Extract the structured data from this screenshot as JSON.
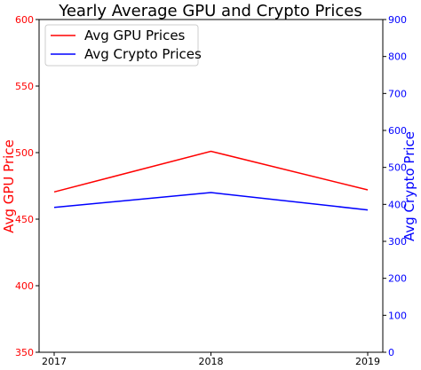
{
  "chart_data": {
    "type": "line",
    "title": "Yearly Average GPU and Crypto Prices",
    "xlabel": "",
    "x": [
      "2017",
      "2018",
      "2019"
    ],
    "legend_position": "top-left",
    "grid": false,
    "series": [
      {
        "name": "Avg GPU Prices",
        "axis": "left",
        "color": "#ff0000",
        "values": [
          470.5,
          501.0,
          472.0
        ]
      },
      {
        "name": "Avg Crypto Prices",
        "axis": "right",
        "color": "#0000ff",
        "values": [
          392,
          432,
          385
        ]
      }
    ],
    "y_left": {
      "label": "Avg GPU Price",
      "color": "#ff0000",
      "lim": [
        350,
        600
      ],
      "ticks": [
        350,
        400,
        450,
        500,
        550,
        600
      ]
    },
    "y_right": {
      "label": "Avg Crypto Price",
      "color": "#0000ff",
      "lim": [
        0,
        900
      ],
      "ticks": [
        0,
        100,
        200,
        300,
        400,
        500,
        600,
        700,
        800,
        900
      ]
    }
  }
}
